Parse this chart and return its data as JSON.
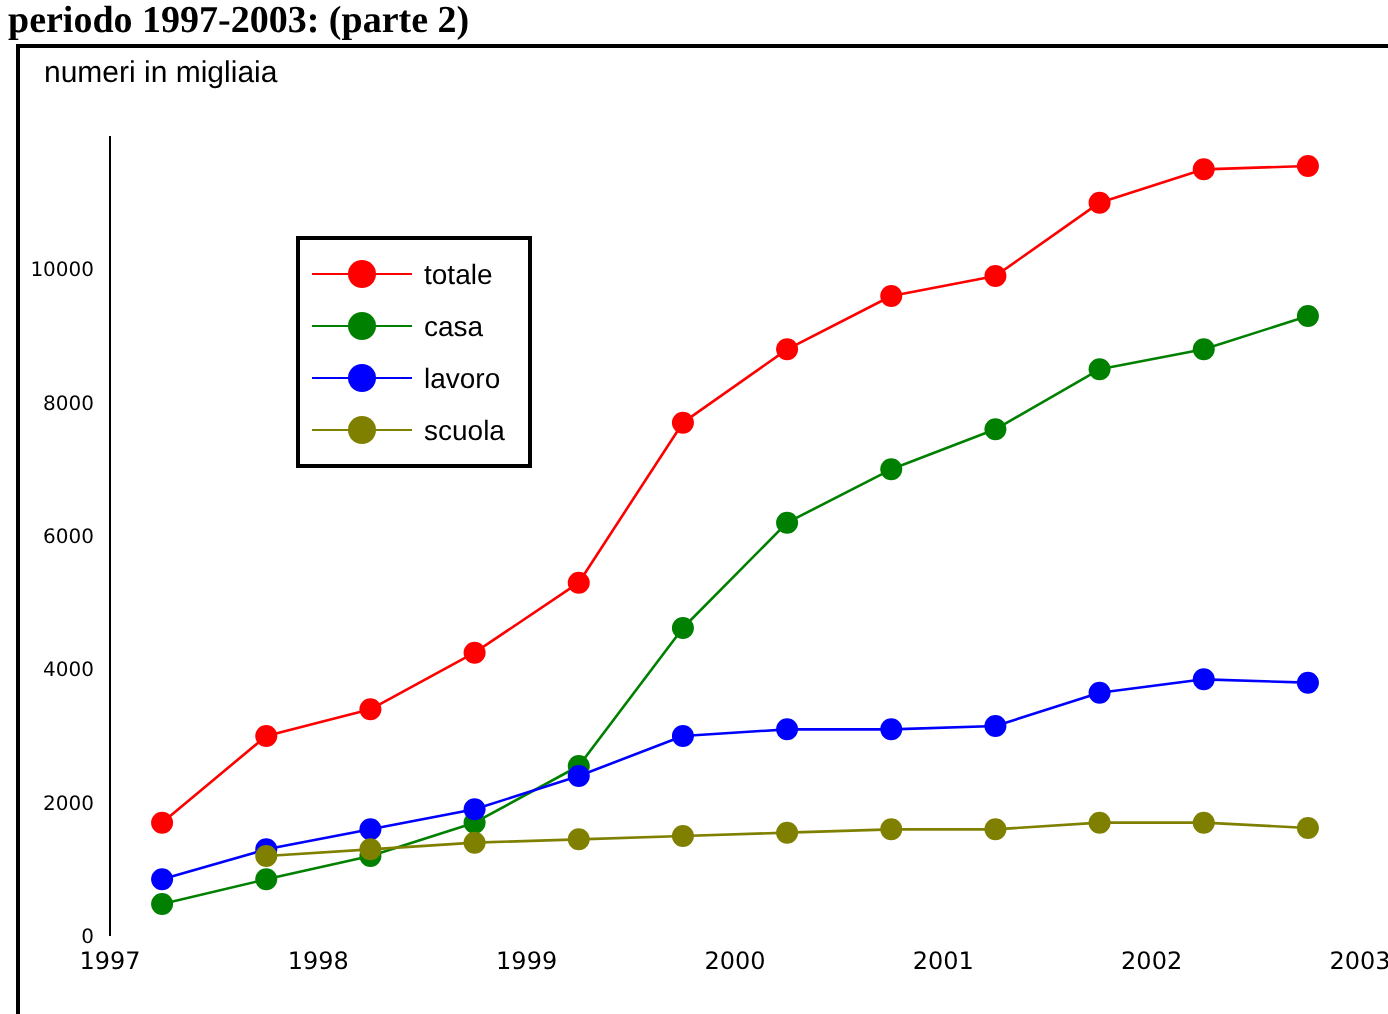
{
  "chart_data": {
    "type": "line",
    "title": "periodo 1997-2003: (parte 2)",
    "ylabel": "numeri in migliaia",
    "x": [
      1997.25,
      1997.75,
      1998.25,
      1998.75,
      1999.25,
      1999.75,
      2000.25,
      2000.75,
      2001.25,
      2001.75,
      2002.25,
      2002.75
    ],
    "series": [
      {
        "name": "totale",
        "color": "#ff0000",
        "values": [
          1700,
          3000,
          3400,
          4250,
          5300,
          7700,
          8800,
          9600,
          9900,
          11000,
          11500,
          11550
        ]
      },
      {
        "name": "casa",
        "color": "#008000",
        "values": [
          480,
          850,
          1200,
          1700,
          2550,
          4620,
          6200,
          7000,
          7600,
          8500,
          8800,
          9300
        ]
      },
      {
        "name": "lavoro",
        "color": "#0000ff",
        "values": [
          850,
          1300,
          1600,
          1900,
          2400,
          3000,
          3100,
          3100,
          3150,
          3650,
          3850,
          3800
        ]
      },
      {
        "name": "scuola",
        "color": "#808000",
        "values": [
          null,
          1200,
          1300,
          1400,
          1450,
          1500,
          1550,
          1600,
          1600,
          1700,
          1700,
          1620
        ]
      }
    ],
    "xlim": [
      1997,
      2003
    ],
    "xticks": [
      1997,
      1998,
      1999,
      2000,
      2001,
      2002,
      2003
    ],
    "ylim": [
      0,
      12000
    ],
    "yticks": [
      0,
      2000,
      4000,
      6000,
      8000,
      10000
    ],
    "grid": false,
    "legend": "top left",
    "marker": "circle",
    "line_style": "solid"
  }
}
